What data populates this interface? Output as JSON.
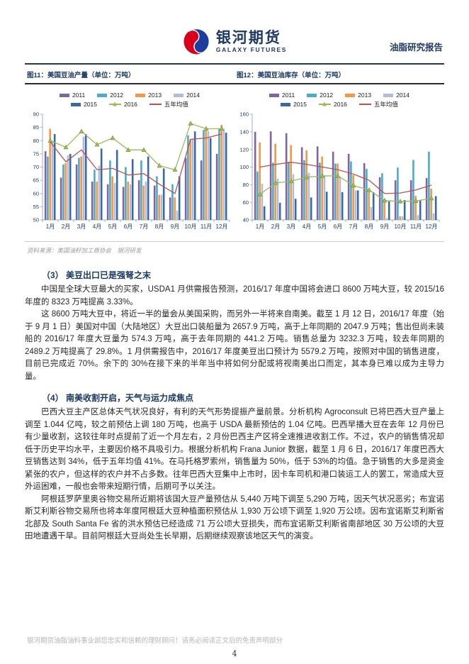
{
  "header": {
    "logo_cn": "银河期货",
    "logo_en": "GALAXY FUTURES",
    "report_type": "油脂研究报告",
    "brand_red": "#D7001D",
    "brand_blue": "#1E3E9E",
    "brand_navy": "#1F3864"
  },
  "figures": {
    "fig11_title": "图11：美国豆油产量（单位：万吨）",
    "fig12_title": "图12：美国豆油库存（单位：万吨）",
    "source_note": "资料来源：美国油籽加工商协会　银河研发"
  },
  "chart_data": [
    {
      "type": "bar",
      "title": "图11：美国豆油产量（单位：万吨）",
      "categories": [
        "1月",
        "2月",
        "3月",
        "4月",
        "5月",
        "6月",
        "7月",
        "8月",
        "9月",
        "10月",
        "11月",
        "12月"
      ],
      "ylim": [
        50,
        90
      ],
      "ytick": 5,
      "grid": false,
      "legend_position": "top",
      "series": [
        {
          "name": "2011",
          "type": "bar",
          "color": "#8064A2",
          "values": [
            76,
            66,
            71,
            64.5,
            63.5,
            62.5,
            65,
            63,
            58.5,
            73.5,
            72.5,
            75
          ]
        },
        {
          "name": "2012",
          "type": "bar",
          "color": "#4BACC6",
          "values": [
            74,
            71,
            73.5,
            69,
            72.5,
            70,
            72.5,
            66.5,
            63.5,
            82,
            84,
            84.5
          ]
        },
        {
          "name": "2013",
          "type": "bar",
          "color": "#F79646",
          "values": [
            84.5,
            71.5,
            74,
            64.5,
            66.5,
            64.5,
            63,
            59.5,
            58.5,
            80.5,
            84,
            86
          ]
        },
        {
          "name": "2014",
          "type": "bar",
          "color": "#AFBDDB",
          "values": [
            79.5,
            74.5,
            81.5,
            70.5,
            64,
            63.5,
            64.5,
            59.5,
            53.5,
            80.5,
            83.5,
            84.5
          ]
        },
        {
          "name": "2015",
          "type": "bar",
          "color": "#3B6AA0",
          "values": [
            82.5,
            75,
            82.5,
            77,
            76.5,
            73,
            74,
            69.5,
            66.5,
            83.5,
            81,
            83
          ]
        },
        {
          "name": "2016",
          "type": "line-marker",
          "color": "#9BBB59",
          "values": [
            80,
            77.5,
            83.5,
            78.5,
            81,
            76.5,
            76.5,
            70.5,
            69,
            86.5,
            84.5,
            84.5
          ]
        },
        {
          "name": "五年均值",
          "type": "line",
          "color": "#C0504D",
          "values": [
            79.5,
            72,
            76.5,
            69,
            69.5,
            67,
            67.5,
            63.5,
            60,
            80.5,
            81,
            82.5
          ]
        }
      ]
    },
    {
      "type": "bar",
      "title": "图12：美国豆油库存（单位：万吨）",
      "categories": [
        "1月",
        "2月",
        "3月",
        "4月",
        "5月",
        "6月",
        "7月",
        "8月",
        "9月",
        "10月",
        "11月",
        "12月"
      ],
      "ylim": [
        40,
        160
      ],
      "ytick": 20,
      "grid": false,
      "legend_position": "top",
      "series": [
        {
          "name": "2011",
          "type": "bar",
          "color": "#8064A2",
          "values": [
            140,
            140.5,
            138.5,
            122.5,
            123.5,
            117.5,
            115,
            104.5,
            88.5,
            85,
            85,
            87.5
          ]
        },
        {
          "name": "2012",
          "type": "bar",
          "color": "#4BACC6",
          "values": [
            95,
            105,
            106,
            108,
            105,
            104,
            106.5,
            98,
            93,
            99.5,
            108,
            117.5
          ]
        },
        {
          "name": "2013",
          "type": "bar",
          "color": "#F79646",
          "values": [
            128,
            126.5,
            125,
            119,
            112,
            104,
            91,
            73.5,
            62,
            44,
            67.5,
            75.5
          ]
        },
        {
          "name": "2014",
          "type": "bar",
          "color": "#AFBDDB",
          "values": [
            81,
            87,
            92,
            93.5,
            89.5,
            88,
            73.5,
            54.5,
            42,
            44,
            45.5,
            47.5
          ]
        },
        {
          "name": "2015",
          "type": "bar",
          "color": "#3B6AA0",
          "values": [
            55.5,
            59.5,
            64,
            65.5,
            72,
            71.5,
            73.5,
            71.5,
            61,
            62.5,
            62.5,
            67
          ]
        },
        {
          "name": "2016",
          "type": "line-marker",
          "color": "#9BBB59",
          "values": [
            69,
            82,
            84,
            88.5,
            90,
            90,
            79,
            74,
            62,
            61,
            61.5,
            64.5
          ]
        },
        {
          "name": "五年均值",
          "type": "line",
          "color": "#C0504D",
          "values": [
            100,
            103,
            105.5,
            103,
            100,
            97,
            92,
            85,
            70,
            70.5,
            74,
            79.5
          ]
        }
      ]
    }
  ],
  "sections": [
    {
      "heading": "（3） 美豆出口已是强弩之末",
      "paragraphs": [
        "中国是全球大豆最大的买家，USDA1 月供需报告预测，2016/17 年度中国将会进口 8600 万吨大豆，较 2015/16 年度的 8323 万吨提高 3.33%。",
        "这 8600 万吨大豆中，将近一半的量会从美国采购，而另外一半将来自南美。截至 1 月 12 日，2016/17 年度（始于 9 月 1 日）美国对中国（大陆地区）大豆出口装船量为 2657.9 万吨，高于上年同期的 2047.9 万吨；售出但尚未装船的 2016/17 年度大豆量为 574.3 万吨，高于去年同期的 441.2 万吨。销售总量为 3232.3 万吨，较去年同期的 2489.2 万吨提高了 29.8%。1 月供需报告中，2016/17 年度美豆出口预计为 5579.2 万吨，按照对中国的销售进度，目前已完成近 70%。余下的 30%在接下来的半年当中将如何分配或将视南美出口而定，其本身已难以成为主导力量。"
      ]
    },
    {
      "heading": "（4） 南美收割开启，天气与运力成焦点",
      "paragraphs": [
        "巴西大豆主产区总体天气状况良好，有利的天气形势提振产量前景。分析机构 Agroconsult 已将巴西大豆产量上调至 1.044 亿吨，较之前预估上调 180 万吨，也高于 USDA 最新预估的 1.04 亿吨。巴西早播大豆在去年 12 月份已有少量收割，这较往年时点提前了近一个月左右，2 月份巴西主产区将全速推进收割工作。不过，农户的销售情况却低于历史平均水平，主要因价格不具吸引力。根据分析机构 Frana Junior 数据，截至 1 月 6 日，2016/17 年度巴西大豆销售达到 34%，低于五年均值 41%。在马托格罗索州，销售量为 50%，低于 53%的均值。急于销售的大多是资金紧张的农户，但这样的农户并不占多数。往年巴西大豆集中上市时，因卡车司机和港口装运工人的罢工，常造成大豆外运困难，一般也会带来短期行情，后期可予以关注。",
        "阿根廷罗萨里奥谷物交易所近期将该国大豆产量预估从 5,440 万吨下调至 5,290 万吨，因天气状况恶劣；布宜诺斯艾利斯谷物交易所也将本年度阿根廷大豆种植面积预估从 1,930 万公顷下调至 1,920 万公顷。因布宜诺斯艾利斯省北部及 South Santa Fe 省的洪水预估已经造成 71 万公顷大豆损失，而布宜诺斯艾利斯省南部地区 30 万公顷的大豆田地遭遇干旱。目前阿根廷大豆尚处生长早期，后期继续观察该地区天气的演变。"
      ]
    }
  ],
  "footer": {
    "disclaimer": "银河期货油脂油料事业部您忠实和信赖的理财顾问！请务必阅读正文后的免责声明部分",
    "page_number": "4"
  }
}
